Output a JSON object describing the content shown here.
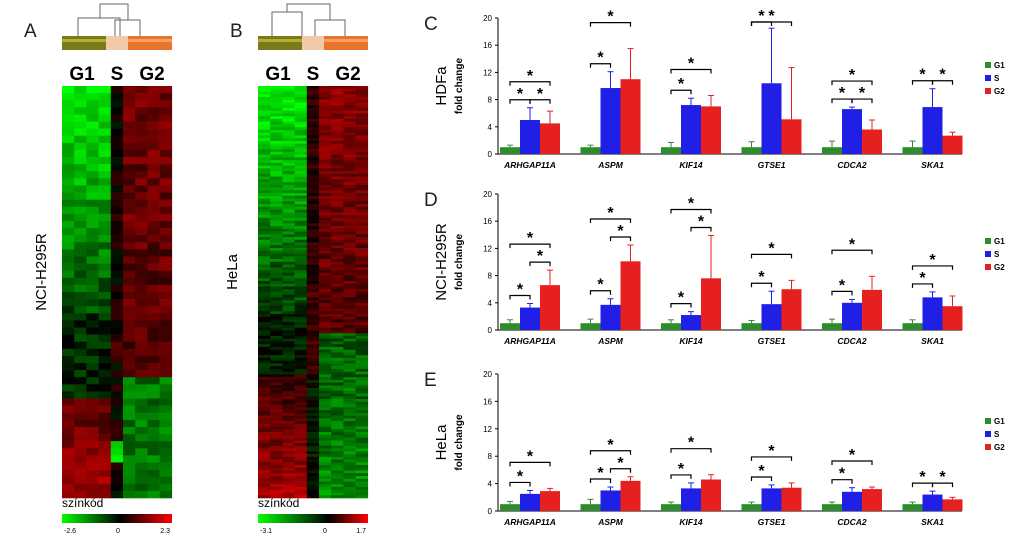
{
  "panels": {
    "A": {
      "letter": "A",
      "cell_line": "NCI-H295R",
      "groups": [
        "G1",
        "S",
        "G2"
      ],
      "scale_label": "színkód",
      "scale_min": "-2.6",
      "scale_mid": "0",
      "scale_max": "2.3",
      "min_value": -2.6,
      "max_value": 2.3
    },
    "B": {
      "letter": "B",
      "cell_line": "HeLa",
      "groups": [
        "G1",
        "S",
        "G2"
      ],
      "scale_label": "színkód",
      "scale_min": "-3.1",
      "scale_mid": "0",
      "scale_max": "1.7",
      "min_value": -3.1,
      "max_value": 1.7
    }
  },
  "colors": {
    "G1": "#2e8b2e",
    "S": "#1f1fe6",
    "G2": "#e61f1f",
    "dendro_g1": "#7a7a1a",
    "dendro_s": "#f3c9a8",
    "dendro_g2": "#e8742a",
    "heat_neg": "#00ff00",
    "heat_pos": "#ff0000"
  },
  "legend": [
    "G1",
    "S",
    "G2"
  ],
  "chart_data": [
    {
      "type": "bar",
      "panel": "C",
      "cell_line": "HDFa",
      "ylabel": "fold change",
      "ylim": [
        0,
        20
      ],
      "yticks": [
        "0",
        "4",
        "8",
        "12",
        "16",
        "20"
      ],
      "categories": [
        "ARHGAP11A",
        "ASPM",
        "KIF14",
        "GTSE1",
        "CDCA2",
        "SKA1"
      ],
      "series": [
        {
          "name": "G1",
          "values": [
            1.0,
            1.0,
            1.0,
            1.0,
            1.0,
            1.0
          ],
          "errors": [
            0.3,
            0.3,
            0.7,
            0.8,
            0.9,
            0.9
          ]
        },
        {
          "name": "S",
          "values": [
            5.0,
            9.7,
            7.2,
            10.4,
            6.6,
            6.9
          ],
          "errors": [
            1.8,
            2.4,
            1.0,
            8.1,
            0.3,
            2.7
          ]
        },
        {
          "name": "G2",
          "values": [
            4.5,
            11.0,
            7.0,
            5.1,
            3.6,
            2.7
          ],
          "errors": [
            1.8,
            4.5,
            1.6,
            7.6,
            1.4,
            0.5
          ]
        }
      ],
      "significance": [
        "* all pairs",
        "*",
        "*",
        "*",
        "*",
        "*"
      ]
    },
    {
      "type": "bar",
      "panel": "D",
      "cell_line": "NCI-H295R",
      "ylabel": "fold change",
      "ylim": [
        0,
        20
      ],
      "yticks": [
        "0",
        "4",
        "8",
        "12",
        "16",
        "20"
      ],
      "categories": [
        "ARHGAP11A",
        "ASPM",
        "KIF14",
        "GTSE1",
        "CDCA2",
        "SKA1"
      ],
      "series": [
        {
          "name": "G1",
          "values": [
            1.0,
            1.0,
            1.0,
            1.0,
            1.0,
            1.0
          ],
          "errors": [
            0.5,
            0.6,
            0.5,
            0.4,
            0.6,
            0.5
          ]
        },
        {
          "name": "S",
          "values": [
            3.3,
            3.7,
            2.2,
            3.8,
            4.0,
            4.8
          ],
          "errors": [
            0.6,
            0.9,
            0.5,
            1.9,
            0.5,
            0.8
          ]
        },
        {
          "name": "G2",
          "values": [
            6.6,
            10.1,
            7.6,
            6.0,
            5.9,
            3.5
          ],
          "errors": [
            2.2,
            2.4,
            6.3,
            1.3,
            2.0,
            1.5
          ]
        }
      ]
    },
    {
      "type": "bar",
      "panel": "E",
      "cell_line": "HeLa",
      "ylabel": "fold change",
      "ylim": [
        0,
        20
      ],
      "yticks": [
        "0",
        "4",
        "8",
        "12",
        "16",
        "20"
      ],
      "categories": [
        "ARHGAP11A",
        "ASPM",
        "KIF14",
        "GTSE1",
        "CDCA2",
        "SKA1"
      ],
      "series": [
        {
          "name": "G1",
          "values": [
            1.0,
            1.0,
            1.0,
            1.0,
            1.0,
            1.0
          ],
          "errors": [
            0.4,
            0.7,
            0.3,
            0.3,
            0.3,
            0.3
          ]
        },
        {
          "name": "S",
          "values": [
            2.5,
            3.0,
            3.3,
            3.3,
            2.8,
            2.4
          ],
          "errors": [
            0.5,
            0.5,
            0.8,
            0.5,
            0.6,
            0.5
          ]
        },
        {
          "name": "G2",
          "values": [
            2.9,
            4.4,
            4.6,
            3.4,
            3.2,
            1.7
          ],
          "errors": [
            0.4,
            0.6,
            0.7,
            0.7,
            0.3,
            0.3
          ]
        }
      ]
    }
  ],
  "significance_marker": "*"
}
